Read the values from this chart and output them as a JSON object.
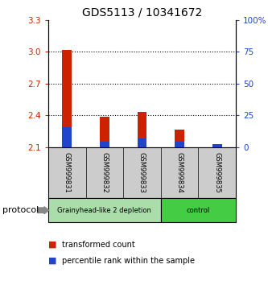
{
  "title": "GDS5113 / 10341672",
  "samples": [
    "GSM999831",
    "GSM999832",
    "GSM999833",
    "GSM999834",
    "GSM999835"
  ],
  "red_values": [
    3.02,
    2.39,
    2.43,
    2.27,
    2.11
  ],
  "blue_values": [
    2.29,
    2.15,
    2.18,
    2.15,
    2.13
  ],
  "ymin": 2.1,
  "ymax": 3.3,
  "yticks_left": [
    2.1,
    2.4,
    2.7,
    3.0,
    3.3
  ],
  "yticks_right": [
    0,
    25,
    50,
    75,
    100
  ],
  "ytick_right_labels": [
    "0",
    "25",
    "50",
    "75",
    "100%"
  ],
  "grid_lines": [
    3.0,
    2.7,
    2.4
  ],
  "groups": [
    {
      "label": "Grainyhead-like 2 depletion",
      "indices": [
        0,
        1,
        2
      ],
      "color": "#aaddaa"
    },
    {
      "label": "control",
      "indices": [
        3,
        4
      ],
      "color": "#44cc44"
    }
  ],
  "bar_width": 0.25,
  "red_color": "#cc2200",
  "blue_color": "#2244cc",
  "background_color": "#ffffff",
  "sample_box_color": "#cccccc",
  "protocol_label": "protocol",
  "legend_red": "transformed count",
  "legend_blue": "percentile rank within the sample",
  "left_tick_color": "#cc2200",
  "right_tick_color": "#2244cc",
  "title_fontsize": 10
}
